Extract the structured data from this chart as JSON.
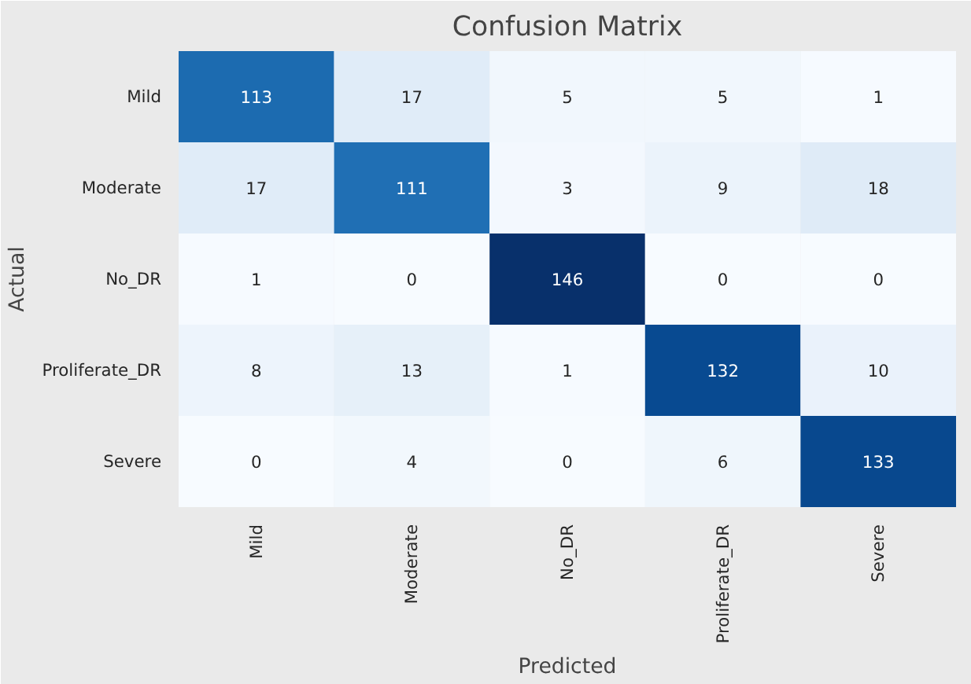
{
  "chart_data": {
    "type": "heatmap",
    "title": "Confusion Matrix",
    "xlabel": "Predicted",
    "ylabel": "Actual",
    "categories": [
      "Mild",
      "Moderate",
      "No_DR",
      "Proliferate_DR",
      "Severe"
    ],
    "y_categories": [
      "Mild",
      "Moderate",
      "No_DR",
      "Proliferate_DR",
      "Severe"
    ],
    "cells": [
      [
        113,
        17,
        5,
        5,
        1
      ],
      [
        17,
        111,
        3,
        9,
        18
      ],
      [
        1,
        0,
        146,
        0,
        0
      ],
      [
        8,
        13,
        1,
        132,
        10
      ],
      [
        0,
        4,
        0,
        6,
        133
      ]
    ],
    "data_labels": true
  }
}
